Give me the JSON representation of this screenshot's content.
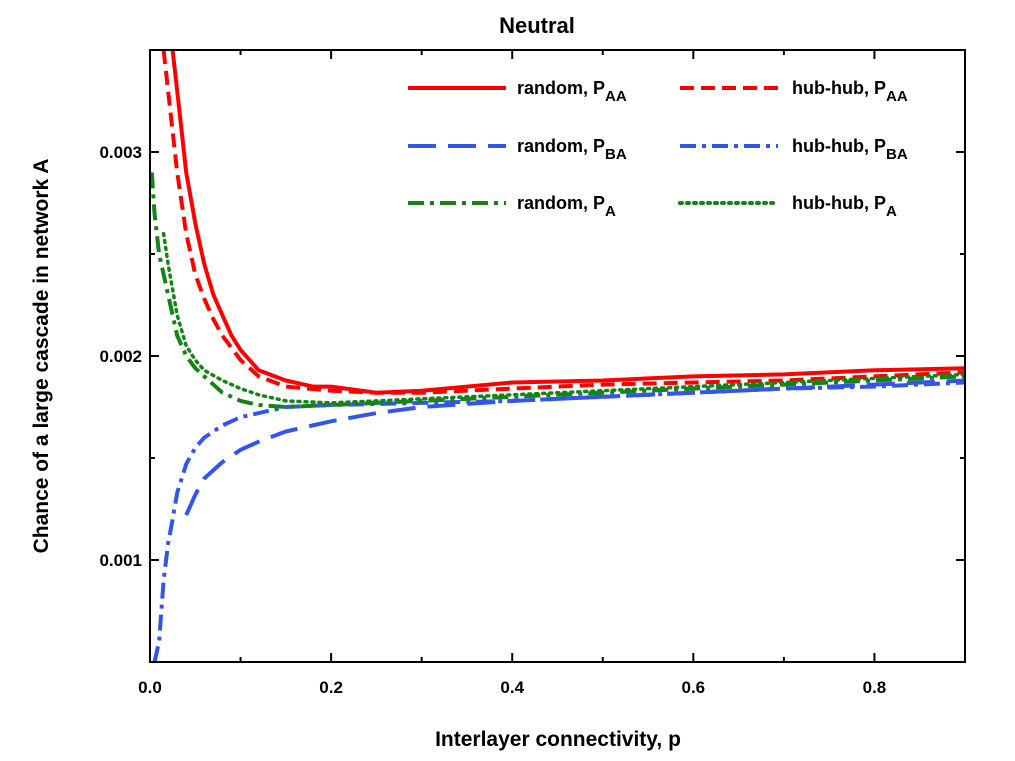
{
  "chart_data": {
    "type": "line",
    "title": "Neutral",
    "xlabel": "Interlayer connectivity, p",
    "ylabel": "Chance of a large cascade in network A",
    "xlim": [
      0.0,
      0.9
    ],
    "ylim": [
      0.0005,
      0.0035
    ],
    "xticks": [
      0.0,
      0.2,
      0.4,
      0.6,
      0.8
    ],
    "xtick_labels": [
      "0.0",
      "0.2",
      "0.4",
      "0.6",
      "0.8"
    ],
    "yticks": [
      0.001,
      0.002,
      0.003
    ],
    "ytick_labels": [
      "0.001",
      "0.002",
      "0.003"
    ],
    "legend_position": "top-right",
    "series": [
      {
        "key": "random-paa",
        "name": "random, P",
        "sub": "AA",
        "color": "#ff0000",
        "style": "solid",
        "x": [
          0.025,
          0.03,
          0.04,
          0.05,
          0.06,
          0.07,
          0.08,
          0.09,
          0.1,
          0.12,
          0.15,
          0.18,
          0.2,
          0.25,
          0.3,
          0.35,
          0.4,
          0.5,
          0.6,
          0.7,
          0.8,
          0.9
        ],
        "y": [
          0.0035,
          0.0033,
          0.0029,
          0.00265,
          0.00245,
          0.0023,
          0.0022,
          0.0021,
          0.00203,
          0.00193,
          0.00188,
          0.00185,
          0.00185,
          0.00182,
          0.00183,
          0.00185,
          0.00187,
          0.00188,
          0.0019,
          0.00191,
          0.00193,
          0.00194
        ]
      },
      {
        "key": "hubhub-paa",
        "name": "hub-hub, P",
        "sub": "AA",
        "color": "#ff0000",
        "style": "dash",
        "x": [
          0.015,
          0.02,
          0.03,
          0.04,
          0.05,
          0.06,
          0.07,
          0.08,
          0.1,
          0.12,
          0.15,
          0.2,
          0.25,
          0.3,
          0.4,
          0.5,
          0.6,
          0.7,
          0.8,
          0.9
        ],
        "y": [
          0.0035,
          0.0033,
          0.0029,
          0.0026,
          0.0024,
          0.00228,
          0.00218,
          0.0021,
          0.00198,
          0.0019,
          0.00185,
          0.00183,
          0.00182,
          0.00182,
          0.00184,
          0.00186,
          0.00187,
          0.00188,
          0.0019,
          0.00192
        ]
      },
      {
        "key": "random-pba",
        "name": "random, P",
        "sub": "BA",
        "color": "#3355ee",
        "style": "longdash",
        "x": [
          0.04,
          0.05,
          0.06,
          0.08,
          0.1,
          0.12,
          0.15,
          0.2,
          0.25,
          0.3,
          0.4,
          0.5,
          0.6,
          0.7,
          0.8,
          0.9
        ],
        "y": [
          0.00122,
          0.00132,
          0.0014,
          0.00148,
          0.00154,
          0.00158,
          0.00163,
          0.00168,
          0.00172,
          0.00175,
          0.00178,
          0.0018,
          0.00182,
          0.00184,
          0.00186,
          0.00188
        ]
      },
      {
        "key": "hubhub-pba",
        "name": "hub-hub, P",
        "sub": "BA",
        "color": "#3355ee",
        "style": "dashdot",
        "x": [
          0.005,
          0.01,
          0.015,
          0.02,
          0.025,
          0.03,
          0.04,
          0.05,
          0.06,
          0.08,
          0.1,
          0.12,
          0.15,
          0.2,
          0.3,
          0.4,
          0.5,
          0.6,
          0.7,
          0.8,
          0.9
        ],
        "y": [
          0.0005,
          0.0006,
          0.0009,
          0.00108,
          0.0012,
          0.00133,
          0.00147,
          0.00155,
          0.0016,
          0.00166,
          0.0017,
          0.00172,
          0.00175,
          0.00176,
          0.00177,
          0.00178,
          0.0018,
          0.00182,
          0.00184,
          0.00185,
          0.00187
        ]
      },
      {
        "key": "random-pa",
        "name": "random, P",
        "sub": "A",
        "color": "#148414",
        "style": "dashdot",
        "x": [
          0.002,
          0.005,
          0.01,
          0.02,
          0.03,
          0.04,
          0.05,
          0.06,
          0.08,
          0.1,
          0.12,
          0.15,
          0.2,
          0.25,
          0.3,
          0.4,
          0.5,
          0.6,
          0.7,
          0.8,
          0.9
        ],
        "y": [
          0.0029,
          0.0027,
          0.0025,
          0.0023,
          0.0021,
          0.002,
          0.00194,
          0.0019,
          0.00182,
          0.00178,
          0.00176,
          0.00175,
          0.00176,
          0.00177,
          0.00178,
          0.0018,
          0.00182,
          0.00184,
          0.00186,
          0.00188,
          0.0019
        ]
      },
      {
        "key": "hubhub-pa",
        "name": "hub-hub, P",
        "sub": "A",
        "color": "#148414",
        "style": "dot",
        "x": [
          0.015,
          0.02,
          0.03,
          0.04,
          0.05,
          0.06,
          0.08,
          0.1,
          0.12,
          0.15,
          0.2,
          0.25,
          0.3,
          0.4,
          0.5,
          0.6,
          0.7,
          0.8,
          0.9
        ],
        "y": [
          0.0026,
          0.00245,
          0.0022,
          0.00205,
          0.00198,
          0.00193,
          0.00188,
          0.00184,
          0.00181,
          0.00178,
          0.00177,
          0.00178,
          0.00179,
          0.00181,
          0.00183,
          0.00185,
          0.00187,
          0.00189,
          0.00191
        ]
      }
    ]
  }
}
